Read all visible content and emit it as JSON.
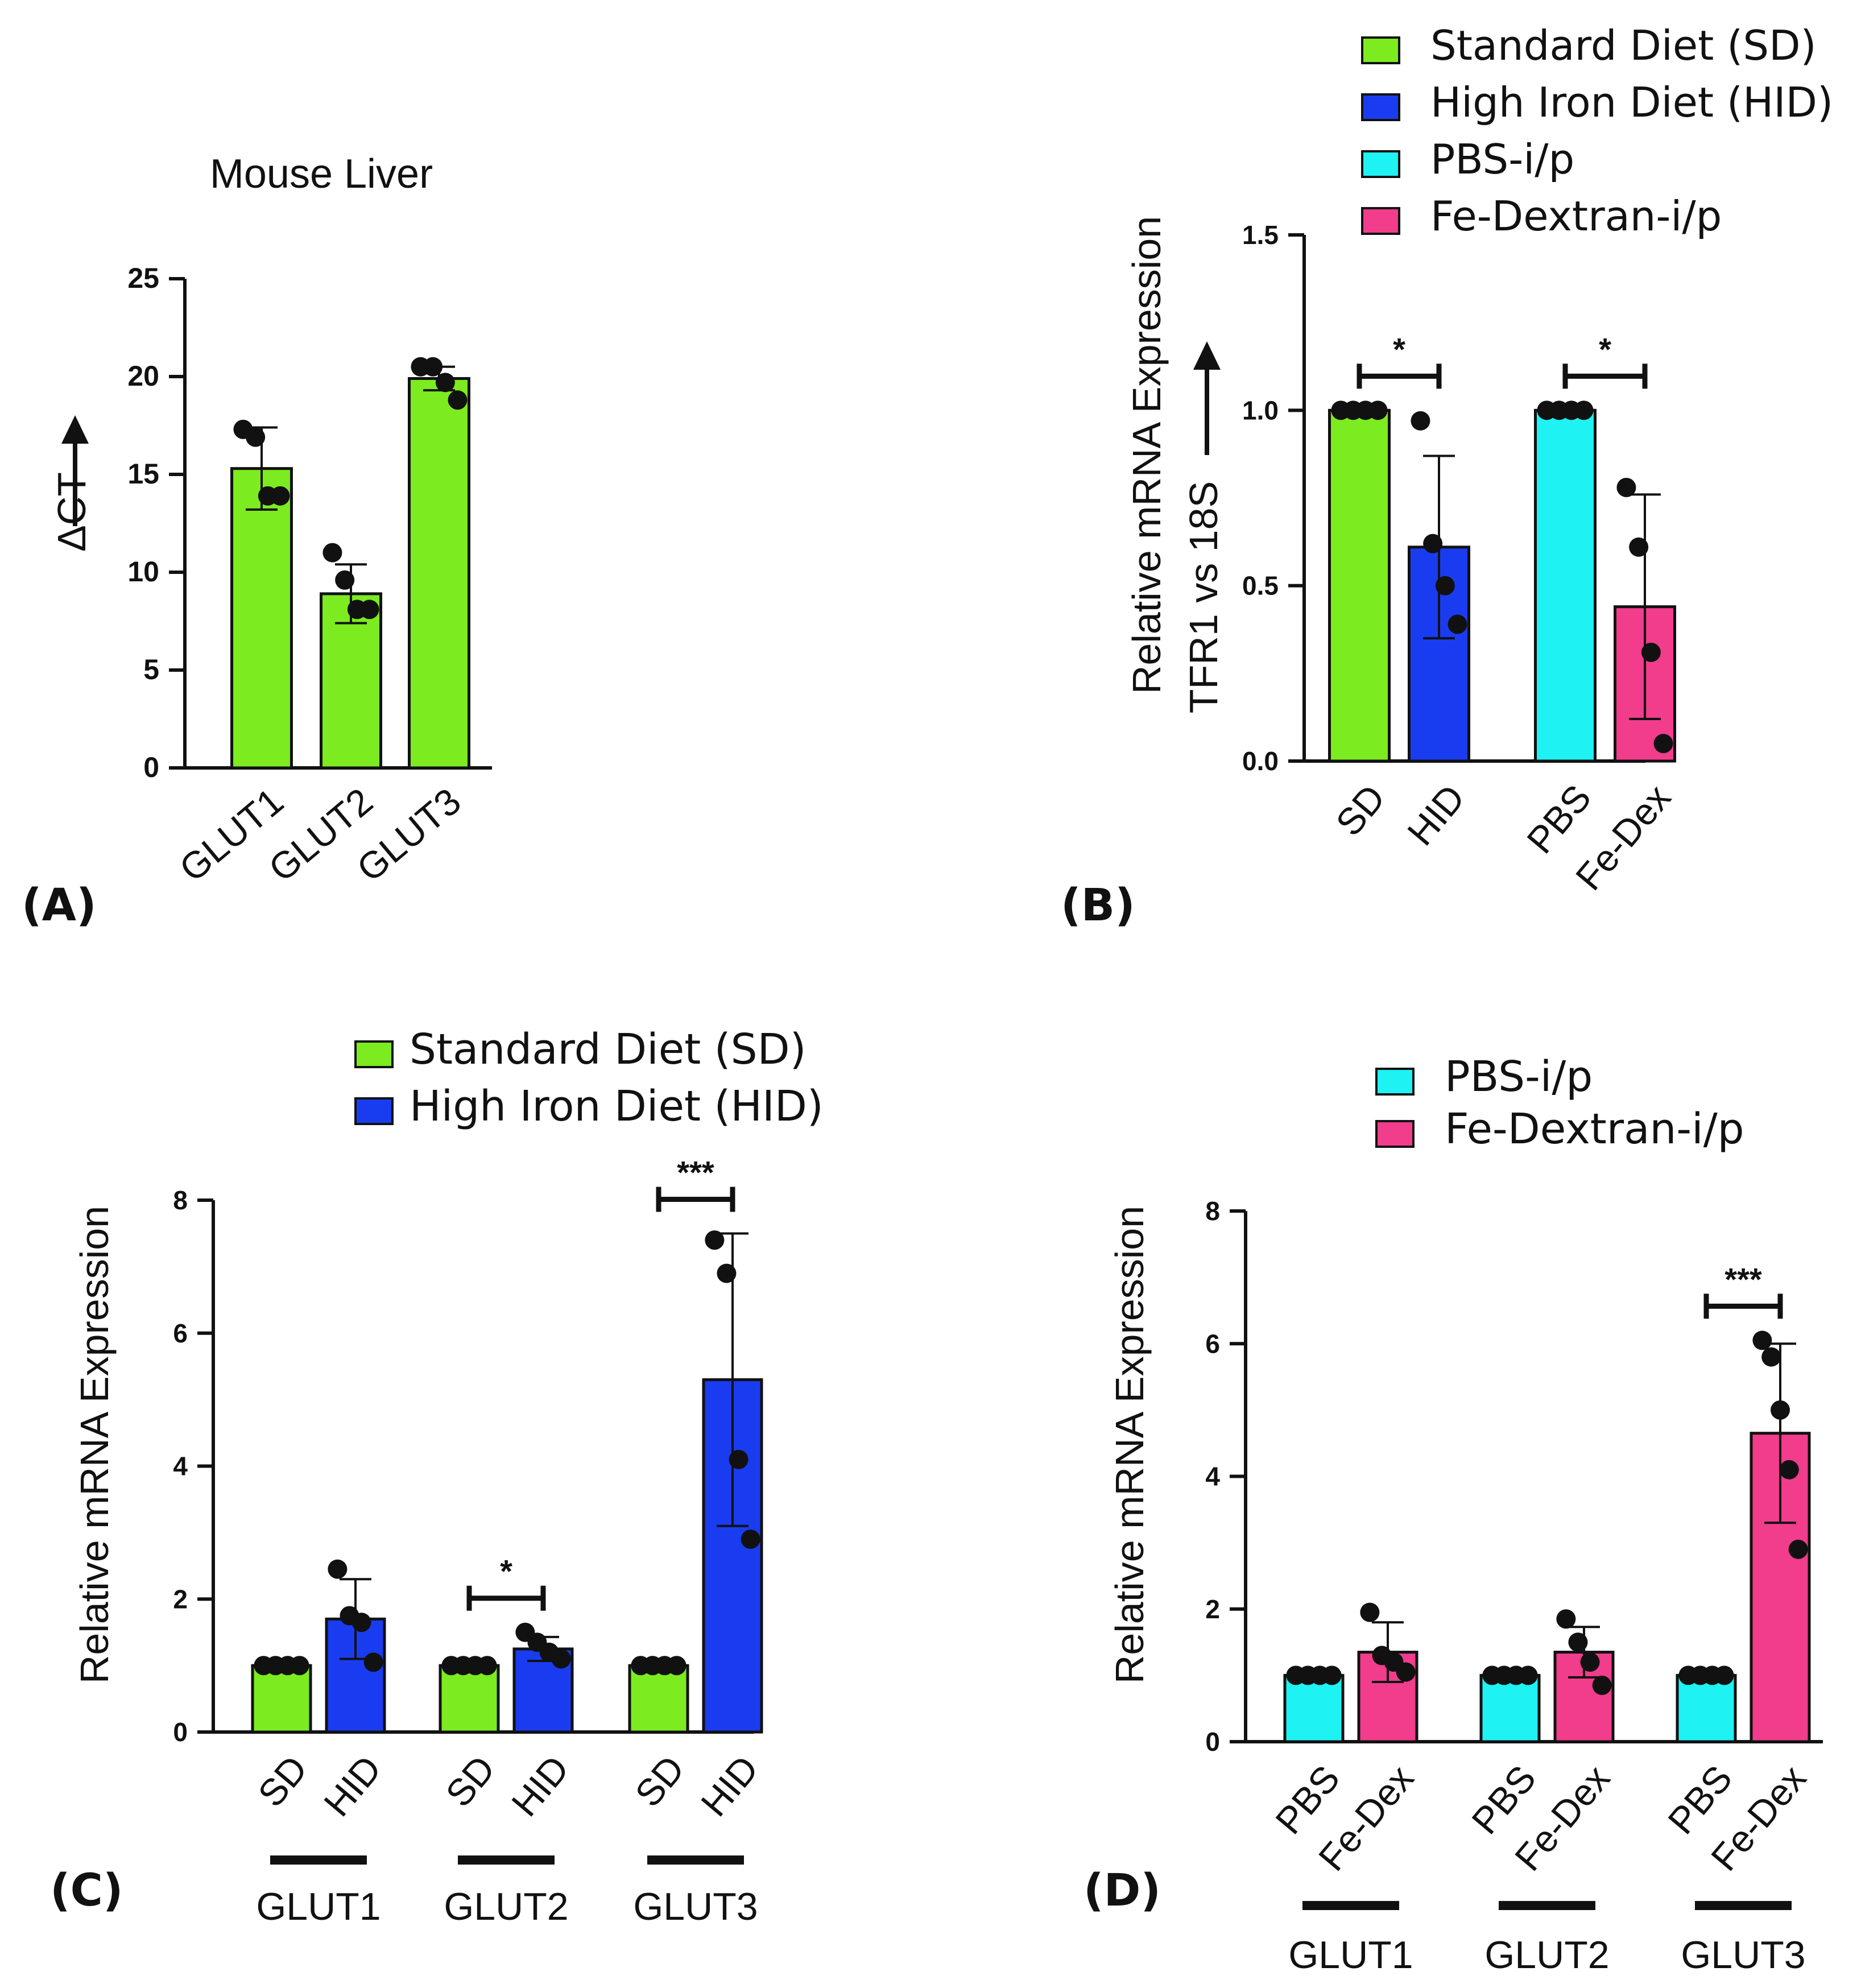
{
  "panel_labels": [
    "(A)",
    "(B)",
    "(C)",
    "(D)"
  ],
  "colors": {
    "standard_diet": "#7CEB1F",
    "high_iron_diet": "#1A3CF0",
    "pbs": "#1EF2F2",
    "fe_dextran": "#F23C8C",
    "axis": "#111111"
  },
  "chart_data": [
    {
      "id": "A",
      "type": "bar",
      "title": "Mouse Liver",
      "ylabel": "ΔCT",
      "ylim": [
        0,
        25
      ],
      "yticks": [
        0,
        5,
        10,
        15,
        20,
        25
      ],
      "categories": [
        "GLUT1",
        "GLUT2",
        "GLUT3"
      ],
      "bars": [
        {
          "label": "GLUT1",
          "color": "standard_diet",
          "value": 15.3,
          "err": 2.1,
          "points": [
            17.3,
            16.9,
            13.9,
            13.9
          ]
        },
        {
          "label": "GLUT2",
          "color": "standard_diet",
          "value": 8.9,
          "err": 1.5,
          "points": [
            11.0,
            9.6,
            8.1,
            8.1
          ]
        },
        {
          "label": "GLUT3",
          "color": "standard_diet",
          "value": 19.9,
          "err": 0.6,
          "points": [
            20.5,
            20.5,
            19.7,
            18.8
          ]
        }
      ],
      "legend": [],
      "significance": [],
      "groups": []
    },
    {
      "id": "B",
      "type": "bar",
      "ylabel": "Relative mRNA Expression\nTFR1 vs 18S",
      "ylim": [
        0,
        1.5
      ],
      "yticks": [
        0.0,
        0.5,
        1.0,
        1.5
      ],
      "categories": [
        "SD",
        "HID",
        "PBS",
        "Fe-Dex"
      ],
      "bars": [
        {
          "label": "SD",
          "color": "standard_diet",
          "value": 1.0,
          "err": 0,
          "points": [
            1.0,
            1.0,
            1.0,
            1.0
          ]
        },
        {
          "label": "HID",
          "color": "high_iron_diet",
          "value": 0.61,
          "err": 0.26,
          "points": [
            0.97,
            0.62,
            0.5,
            0.39
          ]
        },
        {
          "label": "PBS",
          "color": "pbs",
          "value": 1.0,
          "err": 0,
          "points": [
            1.0,
            1.0,
            1.0,
            1.0
          ]
        },
        {
          "label": "Fe-Dex",
          "color": "fe_dextran",
          "value": 0.44,
          "err": 0.32,
          "points": [
            0.78,
            0.61,
            0.31,
            0.05
          ]
        }
      ],
      "legend": [
        {
          "label": "Standard Diet (SD)",
          "color": "standard_diet"
        },
        {
          "label": "High Iron Diet (HID)",
          "color": "high_iron_diet"
        },
        {
          "label": "PBS-i/p",
          "color": "pbs"
        },
        {
          "label": "Fe-Dextran-i/p",
          "color": "fe_dextran"
        }
      ],
      "significance": [
        {
          "from": 0,
          "to": 1,
          "label": "*"
        },
        {
          "from": 2,
          "to": 3,
          "label": "*"
        }
      ],
      "groups": []
    },
    {
      "id": "C",
      "type": "bar",
      "ylabel": "Relative mRNA Expression",
      "ylim": [
        0,
        8
      ],
      "yticks": [
        0,
        2,
        4,
        6,
        8
      ],
      "categories": [
        "SD",
        "HID",
        "SD",
        "HID",
        "SD",
        "HID"
      ],
      "bars": [
        {
          "label": "SD",
          "color": "standard_diet",
          "value": 1.0,
          "err": 0,
          "points": [
            1.0,
            1.0,
            1.0,
            1.0
          ]
        },
        {
          "label": "HID",
          "color": "high_iron_diet",
          "value": 1.7,
          "err": 0.6,
          "points": [
            2.45,
            1.75,
            1.65,
            1.05
          ]
        },
        {
          "label": "SD",
          "color": "standard_diet",
          "value": 1.0,
          "err": 0,
          "points": [
            1.0,
            1.0,
            1.0,
            1.0
          ]
        },
        {
          "label": "HID",
          "color": "high_iron_diet",
          "value": 1.25,
          "err": 0.18,
          "points": [
            1.5,
            1.35,
            1.2,
            1.1
          ]
        },
        {
          "label": "SD",
          "color": "standard_diet",
          "value": 1.0,
          "err": 0,
          "points": [
            1.0,
            1.0,
            1.0,
            1.0
          ]
        },
        {
          "label": "HID",
          "color": "high_iron_diet",
          "value": 5.3,
          "err": 2.2,
          "points": [
            7.4,
            6.9,
            4.1,
            2.9
          ]
        }
      ],
      "legend": [
        {
          "label": "Standard Diet (SD)",
          "color": "standard_diet"
        },
        {
          "label": "High Iron Diet (HID)",
          "color": "high_iron_diet"
        }
      ],
      "significance": [
        {
          "from": 2,
          "to": 3,
          "label": "*"
        },
        {
          "from": 4,
          "to": 5,
          "label": "***"
        }
      ],
      "groups": [
        {
          "label": "GLUT1",
          "bars": [
            0,
            1
          ]
        },
        {
          "label": "GLUT2",
          "bars": [
            2,
            3
          ]
        },
        {
          "label": "GLUT3",
          "bars": [
            4,
            5
          ]
        }
      ]
    },
    {
      "id": "D",
      "type": "bar",
      "ylabel": "Relative mRNA Expression",
      "ylim": [
        0,
        8
      ],
      "yticks": [
        0,
        2,
        4,
        6,
        8
      ],
      "categories": [
        "PBS",
        "Fe-Dex",
        "PBS",
        "Fe-Dex",
        "PBS",
        "Fe-Dex"
      ],
      "bars": [
        {
          "label": "PBS",
          "color": "pbs",
          "value": 1.0,
          "err": 0,
          "points": [
            1.0,
            1.0,
            1.0,
            1.0
          ]
        },
        {
          "label": "Fe-Dex",
          "color": "fe_dextran",
          "value": 1.35,
          "err": 0.45,
          "points": [
            1.95,
            1.3,
            1.2,
            1.05
          ]
        },
        {
          "label": "PBS",
          "color": "pbs",
          "value": 1.0,
          "err": 0,
          "points": [
            1.0,
            1.0,
            1.0,
            1.0
          ]
        },
        {
          "label": "Fe-Dex",
          "color": "fe_dextran",
          "value": 1.35,
          "err": 0.38,
          "points": [
            1.85,
            1.5,
            1.2,
            0.85
          ]
        },
        {
          "label": "PBS",
          "color": "pbs",
          "value": 1.0,
          "err": 0,
          "points": [
            1.0,
            1.0,
            1.0,
            1.0
          ]
        },
        {
          "label": "Fe-Dex",
          "color": "fe_dextran",
          "value": 4.65,
          "err": 1.35,
          "points": [
            6.05,
            5.8,
            5.0,
            4.1,
            2.9
          ]
        }
      ],
      "legend": [
        {
          "label": "PBS-i/p",
          "color": "pbs"
        },
        {
          "label": "Fe-Dextran-i/p",
          "color": "fe_dextran"
        }
      ],
      "significance": [
        {
          "from": 4,
          "to": 5,
          "label": "***"
        }
      ],
      "groups": [
        {
          "label": "GLUT1",
          "bars": [
            0,
            1
          ]
        },
        {
          "label": "GLUT2",
          "bars": [
            2,
            3
          ]
        },
        {
          "label": "GLUT3",
          "bars": [
            4,
            5
          ]
        }
      ]
    }
  ]
}
